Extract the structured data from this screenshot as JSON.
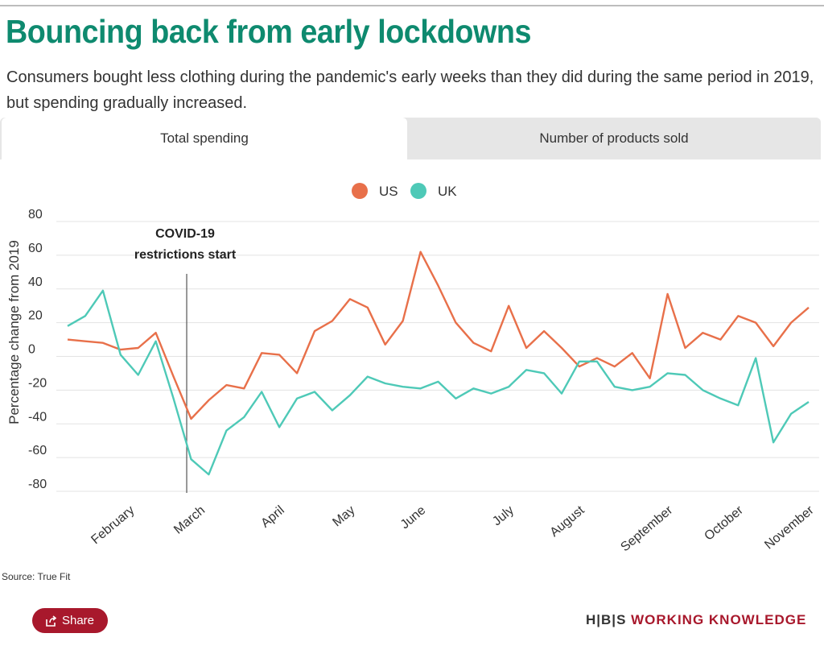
{
  "header": {
    "title": "Bouncing back from early lockdowns",
    "subtitle": "Consumers bought less clothing during the pandemic's early weeks than they did during the same period in 2019, but spending gradually increased."
  },
  "tabs": [
    {
      "label": "Total spending",
      "active": true
    },
    {
      "label": "Number of products sold",
      "active": false
    }
  ],
  "chart_data": {
    "type": "line",
    "title": "",
    "xlabel": "",
    "ylabel": "Percentage change from 2019",
    "ylim": [
      -80,
      80
    ],
    "yticks": [
      80,
      60,
      40,
      20,
      0,
      -20,
      -40,
      -60,
      -80
    ],
    "xlim": [
      0,
      42.5
    ],
    "grid": true,
    "legend_position": "top-center",
    "month_labels": [
      {
        "label": "February",
        "x": 2
      },
      {
        "label": "March",
        "x": 6
      },
      {
        "label": "April",
        "x": 10.5
      },
      {
        "label": "May",
        "x": 14.5
      },
      {
        "label": "June",
        "x": 18.5
      },
      {
        "label": "July",
        "x": 23.5
      },
      {
        "label": "August",
        "x": 27.5
      },
      {
        "label": "September",
        "x": 32.5
      },
      {
        "label": "October",
        "x": 36.5
      },
      {
        "label": "November",
        "x": 40.5
      }
    ],
    "annotation": {
      "lines": [
        "COVID-19",
        "restrictions start"
      ],
      "x": 6.75
    },
    "series": [
      {
        "name": "US",
        "color": "#e8704a",
        "x": [
          0,
          1,
          2,
          3,
          4,
          5,
          6,
          7,
          8,
          9,
          10,
          11,
          12,
          13,
          14,
          15,
          16,
          17,
          18,
          19,
          20,
          21,
          22,
          23,
          24,
          25,
          26,
          27,
          28,
          29,
          30,
          31,
          32,
          33,
          34,
          35,
          36,
          37,
          38,
          39,
          40,
          41,
          42
        ],
        "values": [
          10,
          9,
          8,
          4,
          5,
          14,
          -12,
          -37,
          -26,
          -17,
          -19,
          2,
          1,
          -10,
          15,
          21,
          34,
          29,
          7,
          21,
          62,
          42,
          20,
          8,
          3,
          30,
          5,
          15,
          5,
          -6,
          -1,
          -6,
          2,
          -13,
          37,
          5,
          14,
          10,
          24,
          20,
          6,
          20,
          29
        ]
      },
      {
        "name": "UK",
        "color": "#4ec9b7",
        "x": [
          0,
          1,
          2,
          3,
          4,
          5,
          6,
          7,
          8,
          9,
          10,
          11,
          12,
          13,
          14,
          15,
          16,
          17,
          18,
          19,
          20,
          21,
          22,
          23,
          24,
          25,
          26,
          27,
          28,
          29,
          30,
          31,
          32,
          33,
          34,
          35,
          36,
          37,
          38,
          39,
          40,
          41,
          42
        ],
        "values": [
          18,
          24,
          39,
          1,
          -11,
          9,
          -25,
          -61,
          -70,
          -44,
          -36,
          -21,
          -42,
          -25,
          -21,
          -32,
          -23,
          -12,
          -16,
          -18,
          -19,
          -15,
          -25,
          -19,
          -22,
          -18,
          -8,
          -10,
          -22,
          -3,
          -3,
          -18,
          -20,
          -18,
          -10,
          -11,
          -20,
          -25,
          -29,
          -1,
          -51,
          -34,
          -27
        ]
      }
    ]
  },
  "footer": {
    "source": "Source: True Fit",
    "share_label": "Share",
    "logo_mark": "H|B|S",
    "logo_text": "WORKING KNOWLEDGE"
  },
  "colors": {
    "title": "#0e8a6f",
    "brand": "#a8182c",
    "us": "#e8704a",
    "uk": "#4ec9b7"
  }
}
